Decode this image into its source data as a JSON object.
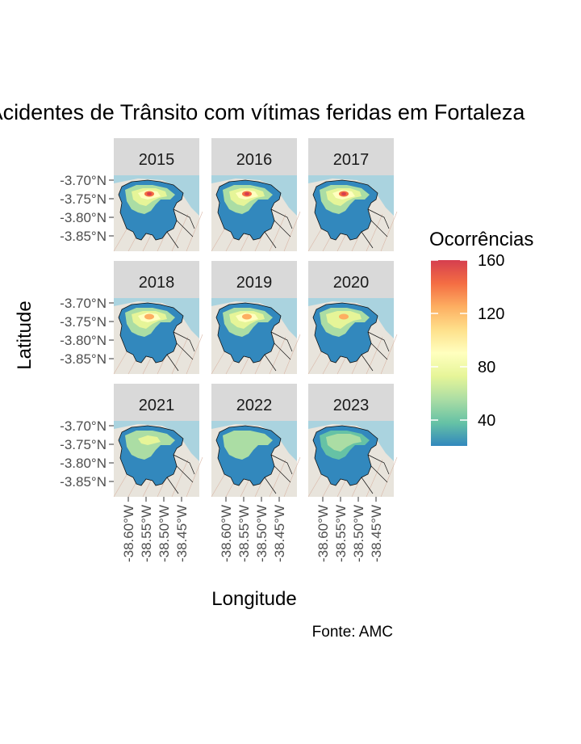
{
  "title": "Acidentes de Trânsito com vítimas feridas em Fortaleza",
  "caption": "Fonte: AMC",
  "axes": {
    "xlabel": "Longitude",
    "ylabel": "Latitude",
    "x_ticks": [
      "-38.60°W",
      "-38.55°W",
      "-38.50°W",
      "-38.45°W"
    ],
    "y_ticks": [
      "-3.70°N",
      "-3.75°N",
      "-3.80°N",
      "-3.85°N"
    ]
  },
  "legend": {
    "title": "Ocorrências",
    "labels": [
      "160",
      "120",
      "80",
      "40"
    ],
    "colors": [
      "#d53e4f",
      "#f46d43",
      "#fdae61",
      "#fee08b",
      "#ffffbf",
      "#e6f598",
      "#abdda4",
      "#66c2a5",
      "#3288bd"
    ]
  },
  "panels": [
    {
      "year": "2015",
      "intensity": 1.0
    },
    {
      "year": "2016",
      "intensity": 0.95
    },
    {
      "year": "2017",
      "intensity": 0.9
    },
    {
      "year": "2018",
      "intensity": 0.8
    },
    {
      "year": "2019",
      "intensity": 0.75
    },
    {
      "year": "2020",
      "intensity": 0.6
    },
    {
      "year": "2021",
      "intensity": 0.45
    },
    {
      "year": "2022",
      "intensity": 0.35
    },
    {
      "year": "2023",
      "intensity": 0.3
    }
  ],
  "colors": {
    "strip_bg": "#d9d9d9",
    "sea": "#aad3df",
    "land": "#e8e4dc"
  }
}
